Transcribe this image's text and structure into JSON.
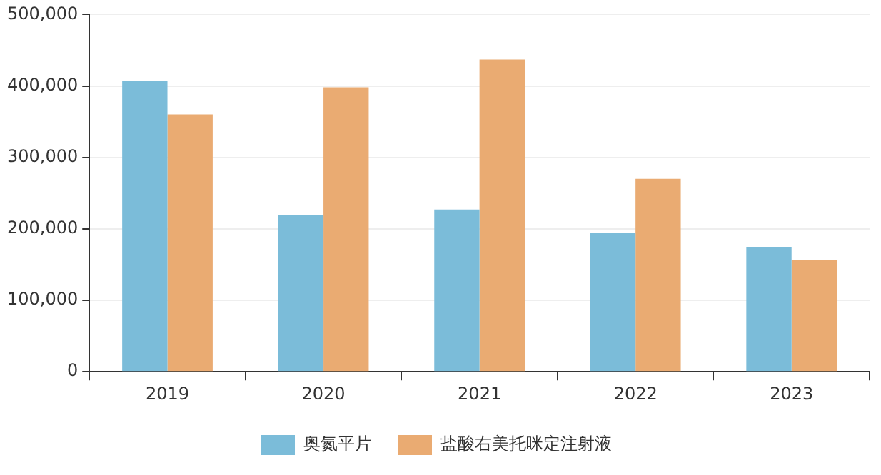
{
  "chart_data": {
    "type": "bar",
    "categories": [
      "2019",
      "2020",
      "2021",
      "2022",
      "2023"
    ],
    "series": [
      {
        "name": "奥氮平片",
        "color": "#7bbcd9",
        "values": [
          407000,
          219000,
          227000,
          194000,
          174000
        ]
      },
      {
        "name": "盐酸右美托咪定注射液",
        "color": "#eaab72",
        "values": [
          360000,
          398000,
          437000,
          270000,
          156000
        ]
      }
    ],
    "ylim": [
      0,
      500000
    ],
    "yticks": [
      {
        "value": 0,
        "label": "0"
      },
      {
        "value": 100000,
        "label": "100,000"
      },
      {
        "value": 200000,
        "label": "200,000"
      },
      {
        "value": 300000,
        "label": "300,000"
      },
      {
        "value": 400000,
        "label": "400,000"
      },
      {
        "value": 500000,
        "label": "500,000"
      }
    ],
    "grid": "y",
    "legend": "bottom"
  }
}
